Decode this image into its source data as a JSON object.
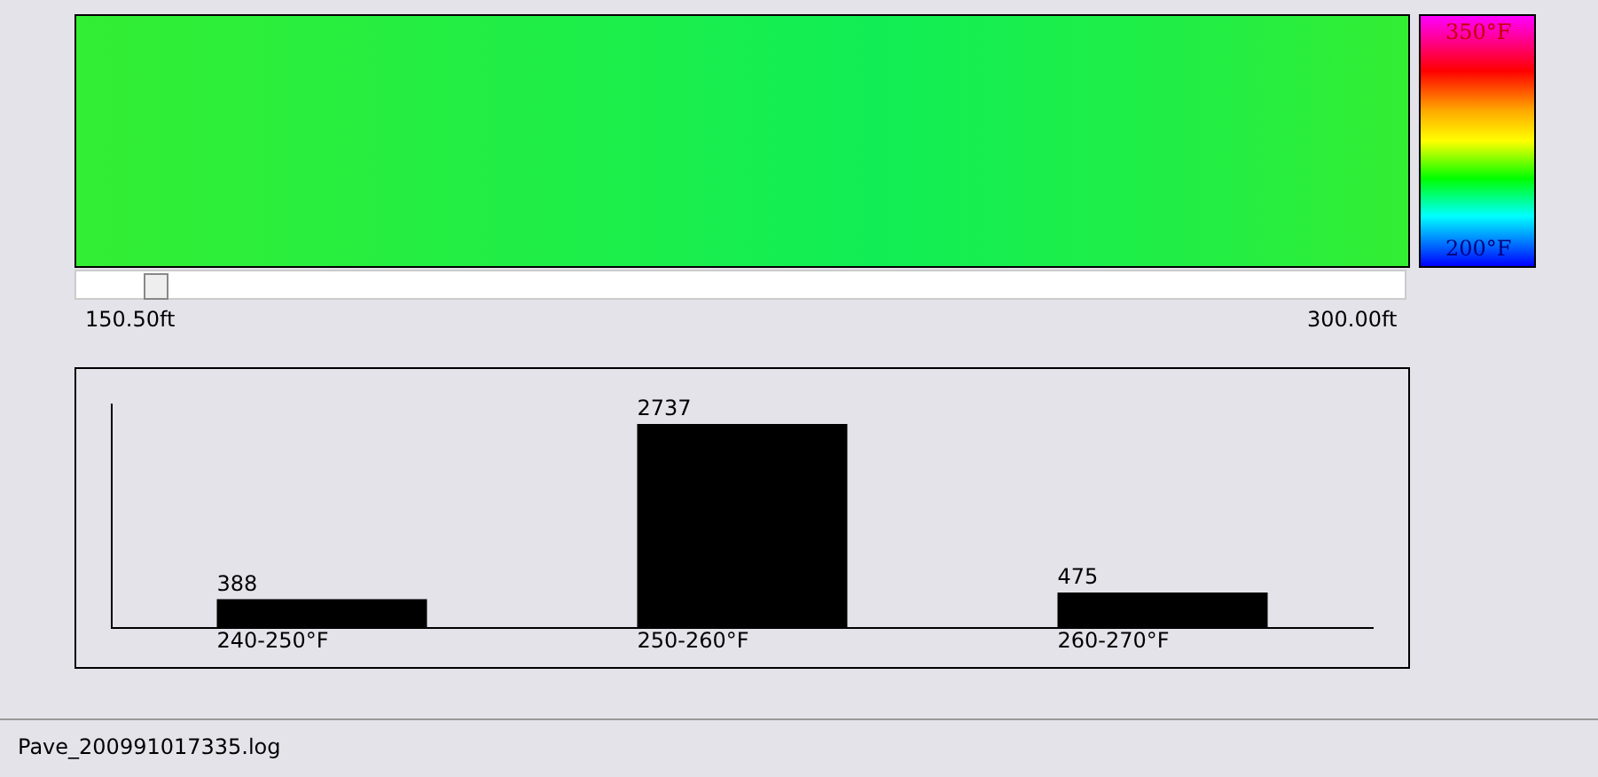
{
  "chart_data": [
    {
      "type": "other",
      "annotations": [
        "350°F",
        "200°F",
        "150.50ft",
        "300.00ft",
        "Pave_200991017335.log"
      ]
    },
    {
      "type": "bar",
      "categories": [
        "240-250°F",
        "250-260°F",
        "260-270°F"
      ],
      "values": [
        388,
        2737,
        475
      ],
      "color": "#000000",
      "data_labels": true,
      "grid": false,
      "legend": false
    }
  ]
}
